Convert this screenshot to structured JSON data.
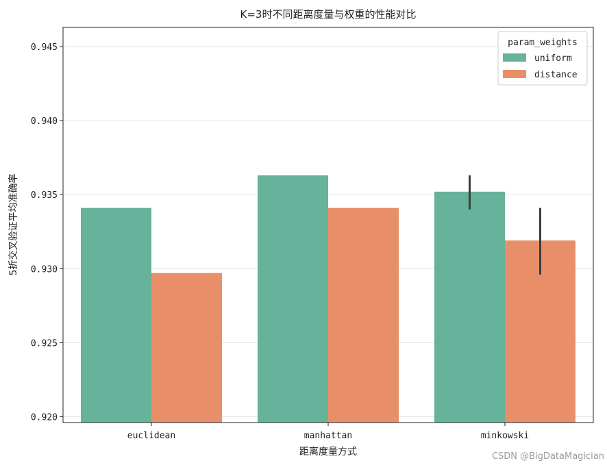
{
  "chart_data": {
    "type": "bar",
    "title": "K=3时不同距离度量与权重的性能对比",
    "xlabel": "距离度量方式",
    "ylabel": "5折交叉验证平均准确率",
    "categories": [
      "euclidean",
      "manhattan",
      "minkowski"
    ],
    "series": [
      {
        "name": "uniform",
        "color": "#66b29a",
        "values": [
          0.9341,
          0.9363,
          0.9352
        ],
        "err_low": [
          null,
          null,
          0.934
        ],
        "err_high": [
          null,
          null,
          0.9363
        ]
      },
      {
        "name": "distance",
        "color": "#e88f6a",
        "values": [
          0.9297,
          0.9341,
          0.9319
        ],
        "err_low": [
          null,
          null,
          0.9296
        ],
        "err_high": [
          null,
          null,
          0.9341
        ]
      }
    ],
    "ylim": [
      0.9196,
      0.9463
    ],
    "yticks": [
      "0.920",
      "0.925",
      "0.930",
      "0.935",
      "0.940",
      "0.945"
    ],
    "grid": "horizontal",
    "legend_title": "param_weights",
    "legend_position": "top-right"
  },
  "watermark": "CSDN @BigDataMagician"
}
